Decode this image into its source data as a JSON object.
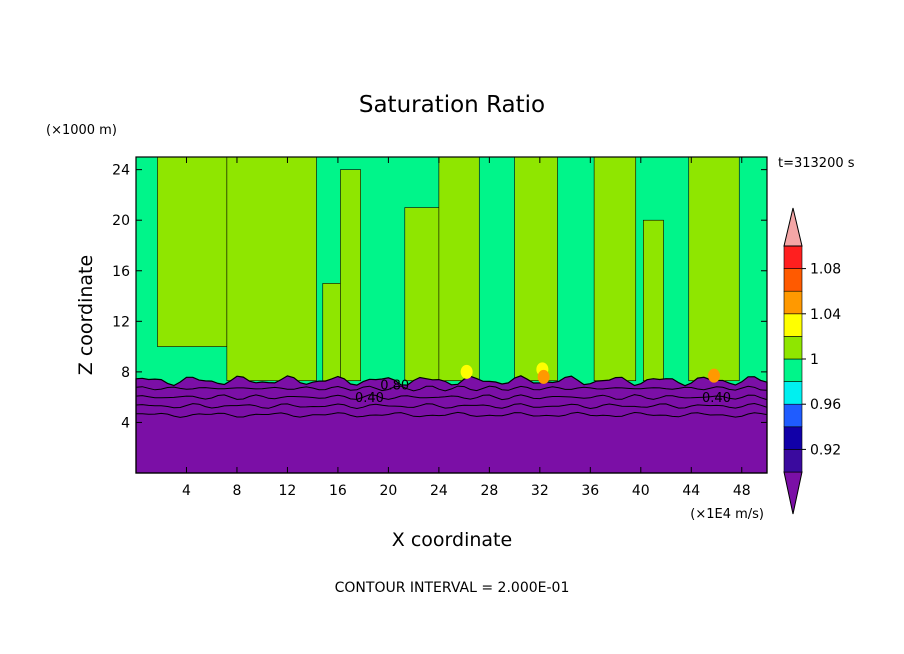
{
  "chart_data": {
    "type": "heatmap",
    "title": "Saturation Ratio",
    "xlabel": "X coordinate",
    "ylabel": "Z coordinate",
    "x_unit": "(×1E4 m/s)",
    "y_unit": "(×1000 m)",
    "time_label": "t=313200 s",
    "footer": "CONTOUR INTERVAL = 2.000E-01",
    "xlim": [
      0,
      50
    ],
    "ylim": [
      0,
      25
    ],
    "x_ticks": [
      "4",
      "8",
      "12",
      "16",
      "20",
      "24",
      "28",
      "32",
      "36",
      "40",
      "44",
      "48"
    ],
    "y_ticks": [
      "4",
      "8",
      "12",
      "16",
      "20",
      "24"
    ],
    "colorbar": {
      "labels": [
        "0.92",
        "0.96",
        "1",
        "1.04",
        "1.08"
      ],
      "bands": [
        {
          "value": 0.88,
          "color": "#7b0fa6"
        },
        {
          "value": 0.9,
          "color": "#3a0a9e"
        },
        {
          "value": 0.92,
          "color": "#1100a8"
        },
        {
          "value": 0.94,
          "color": "#1f5cff"
        },
        {
          "value": 0.96,
          "color": "#00f0f0"
        },
        {
          "value": 0.98,
          "color": "#00f58a"
        },
        {
          "value": 1.0,
          "color": "#8fe600"
        },
        {
          "value": 1.02,
          "color": "#ffff00"
        },
        {
          "value": 1.04,
          "color": "#ff9900"
        },
        {
          "value": 1.06,
          "color": "#ff5a00"
        },
        {
          "value": 1.08,
          "color": "#ff1f1f"
        },
        {
          "value": 1.1,
          "color": "#f4a6a6"
        }
      ]
    },
    "contour_labels": [
      {
        "text": "0.80",
        "x": 20.5,
        "z": 7.0
      },
      {
        "text": "0.40",
        "x": 18.5,
        "z": 6.0
      },
      {
        "text": "0.40",
        "x": 46.0,
        "z": 6.0
      }
    ],
    "regions": {
      "dry_layer_top_z": 7.3,
      "contours_z": [
        4.6,
        5.3,
        6.0,
        6.7
      ],
      "vertical_bands": [
        {
          "x0": 1.7,
          "x1": 7.2,
          "fill": "#8fe600",
          "zbot": 10,
          "ztop": 25
        },
        {
          "x0": 7.2,
          "x1": 14.3,
          "fill": "#8fe600",
          "zbot": 7.3,
          "ztop": 25
        },
        {
          "x0": 14.8,
          "x1": 17.0,
          "fill": "#8fe600",
          "zbot": 7.3,
          "ztop": 15
        },
        {
          "x0": 16.2,
          "x1": 17.8,
          "fill": "#8fe600",
          "zbot": 7.3,
          "ztop": 24
        },
        {
          "x0": 21.3,
          "x1": 24.8,
          "fill": "#8fe600",
          "zbot": 7.3,
          "ztop": 21
        },
        {
          "x0": 24.0,
          "x1": 27.2,
          "fill": "#8fe600",
          "zbot": 7.3,
          "ztop": 25
        },
        {
          "x0": 30.0,
          "x1": 33.4,
          "fill": "#8fe600",
          "zbot": 7.3,
          "ztop": 25
        },
        {
          "x0": 36.3,
          "x1": 39.6,
          "fill": "#8fe600",
          "zbot": 7.3,
          "ztop": 25
        },
        {
          "x0": 40.2,
          "x1": 41.8,
          "fill": "#8fe600",
          "zbot": 7.3,
          "ztop": 20
        },
        {
          "x0": 43.8,
          "x1": 47.8,
          "fill": "#8fe600",
          "zbot": 7.3,
          "ztop": 25
        }
      ],
      "supersaturated_patches": [
        {
          "x": 26.2,
          "z": 8.0,
          "fill": "#ffff00"
        },
        {
          "x": 32.2,
          "z": 8.2,
          "fill": "#ffff00"
        },
        {
          "x": 32.3,
          "z": 7.6,
          "fill": "#ff9900"
        },
        {
          "x": 45.8,
          "z": 7.7,
          "fill": "#ff9900"
        }
      ]
    }
  }
}
